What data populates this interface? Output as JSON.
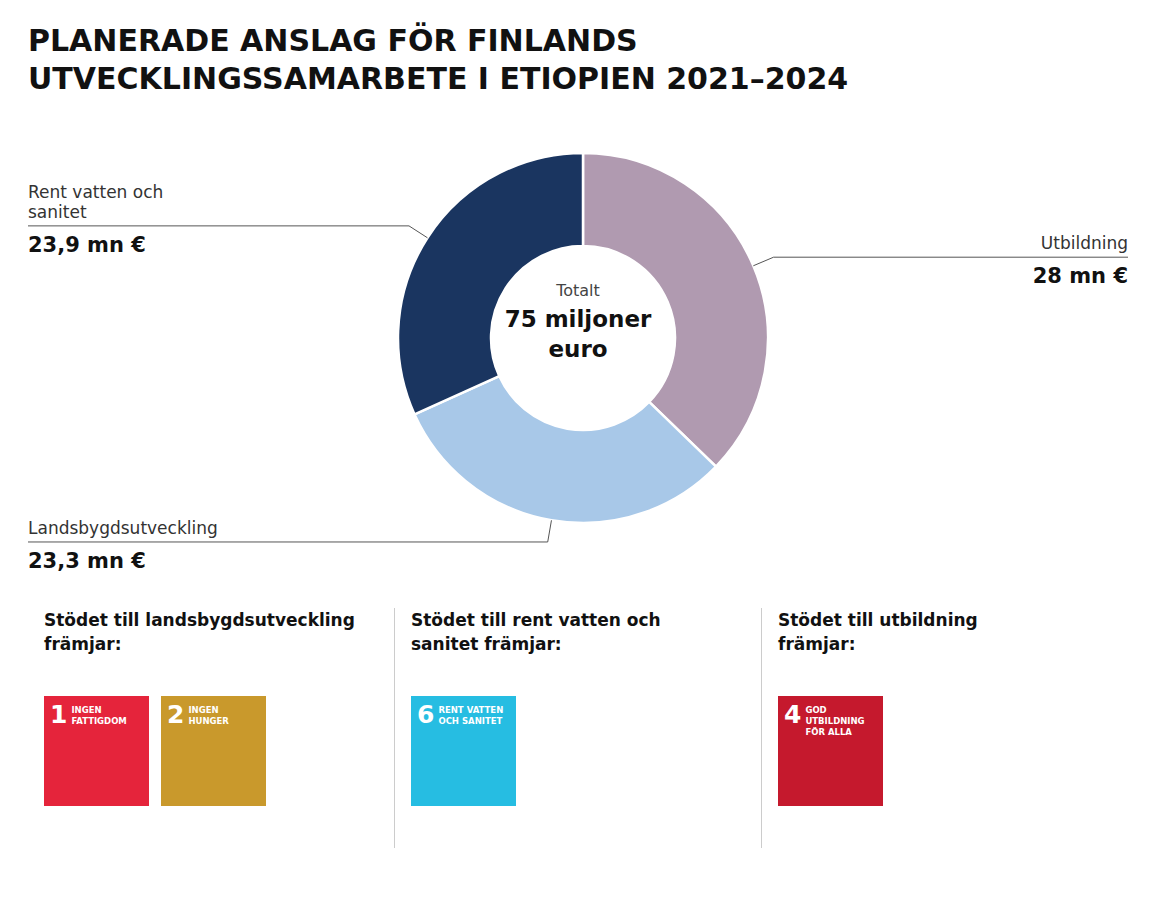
{
  "chart_data": {
    "type": "pie",
    "title": "PLANERADE ANSLAG FÖR FINLANDS\nUTVECKLINGSSAMARBETE I ETIOPIEN 2021–2024",
    "categories": [
      "Utbildning",
      "Landsbygdsutveckling",
      "Rent vatten och\nsanitet"
    ],
    "values": [
      28.0,
      23.3,
      23.9
    ],
    "value_labels": [
      "28 mn €",
      "23,3 mn €",
      "23,9 mn €"
    ],
    "colors": [
      "#b09ab0",
      "#a8c8e8",
      "#1a3560"
    ],
    "annotations": {
      "center": [
        "Totalt",
        "75 miljoner",
        "euro"
      ],
      "panels": [
        {
          "text": "Stödet till landsbygdsutveckling\nfrämjar:",
          "icons": [
            {
              "text": "1",
              "subtitle": "INGEN\nFATTIGDOM",
              "color": "#e5243b"
            },
            {
              "text": "2",
              "subtitle": "INGEN\nHUNGER",
              "color": "#c9992c"
            }
          ]
        },
        {
          "text": "Stödet till rent vatten och\nsanitet främjar:",
          "icons": [
            {
              "text": "6",
              "subtitle": "RENT VATTEN\nOCH SANITET",
              "color": "#26bde2"
            }
          ]
        },
        {
          "text": "Stödet till utbildning\nfrämjar:",
          "icons": [
            {
              "text": "4",
              "subtitle": "GOD UTBILDNING\nFÖR ALLA",
              "color": "#c5192d"
            }
          ]
        }
      ]
    }
  }
}
